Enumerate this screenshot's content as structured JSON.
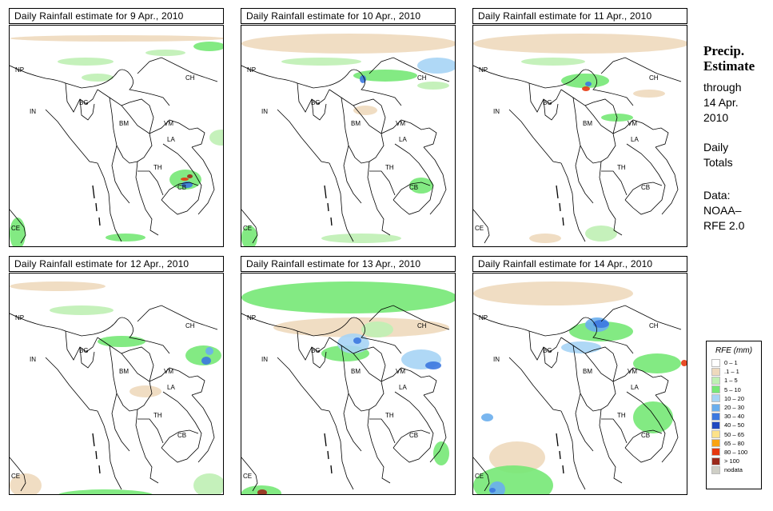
{
  "panels": [
    {
      "title": "Daily Rainfall estimate for  9 Apr., 2010"
    },
    {
      "title": "Daily Rainfall estimate for  10 Apr., 2010"
    },
    {
      "title": "Daily Rainfall estimate for  11 Apr., 2010"
    },
    {
      "title": "Daily Rainfall estimate for  12 Apr., 2010"
    },
    {
      "title": "Daily Rainfall estimate for  13 Apr., 2010"
    },
    {
      "title": "Daily Rainfall estimate for  14 Apr., 2010"
    }
  ],
  "country_labels": [
    "NP",
    "CH",
    "IN",
    "BG",
    "BM",
    "VM",
    "LA",
    "TH",
    "CB",
    "CE"
  ],
  "sidebar": {
    "title_line1": "Precip.",
    "title_line2": "Estimate",
    "through_label": "through",
    "date_line1": "14 Apr.",
    "date_line2": "2010",
    "daily_line1": "Daily",
    "daily_line2": "Totals",
    "data_line1": "Data:",
    "data_line2": "NOAA–",
    "data_line3": "RFE 2.0"
  },
  "legend": {
    "title": "RFE (mm)",
    "items": [
      {
        "label": "0 – 1",
        "color": "#ffffff"
      },
      {
        "label": ".1 – 1",
        "color": "#eed9bd"
      },
      {
        "label": "1 – 5",
        "color": "#bff0b4"
      },
      {
        "label": "5 – 10",
        "color": "#76e876"
      },
      {
        "label": "10 – 20",
        "color": "#a6d4f5"
      },
      {
        "label": "20 – 30",
        "color": "#6aaeed"
      },
      {
        "label": "30 – 40",
        "color": "#3c78e0"
      },
      {
        "label": "40 – 50",
        "color": "#2048c0"
      },
      {
        "label": "50 – 65",
        "color": "#fde28a"
      },
      {
        "label": "65 – 80",
        "color": "#f9a313"
      },
      {
        "label": "80 – 100",
        "color": "#e5380f"
      },
      {
        "label": "> 100",
        "color": "#9b2a1c"
      },
      {
        "label": "nodata",
        "color": "#cfcfc6"
      }
    ]
  }
}
